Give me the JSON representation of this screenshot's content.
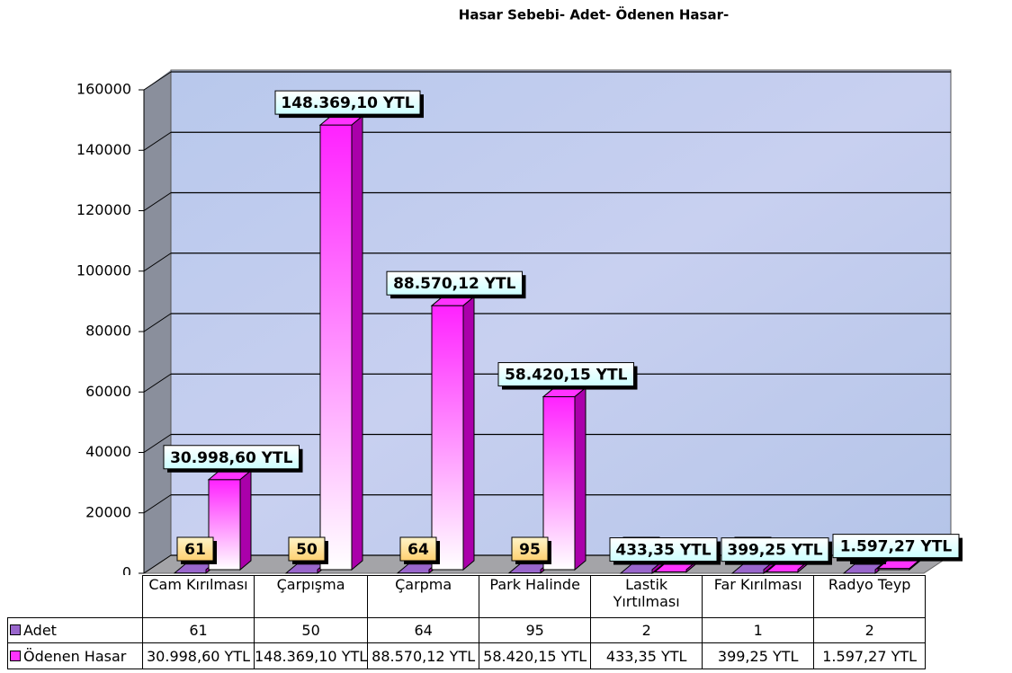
{
  "chart_data": {
    "type": "bar3d",
    "title": "Hasar Sebebi- Adet-  Ödenen Hasar-",
    "categories": [
      "Cam Kırılması",
      "Çarpışma",
      "Çarpma",
      "Park Halinde",
      "Lastik Yırtılması",
      "Far Kırılması",
      "Radyo Teyp"
    ],
    "series": [
      {
        "name": "Adet",
        "color": "#9966cc",
        "values": [
          61,
          50,
          64,
          95,
          2,
          1,
          2
        ]
      },
      {
        "name": "Ödenen Hasar",
        "color": "#ff33ff",
        "values": [
          30998.6,
          148369.1,
          88570.12,
          58420.15,
          433.35,
          399.25,
          1597.27
        ],
        "value_labels": [
          "30.998,60 YTL",
          "148.369,10 YTL",
          "88.570,12 YTL",
          "58.420,15 YTL",
          "433,35 YTL",
          "399,25 YTL",
          "1.597,27 YTL"
        ]
      }
    ],
    "ylim": [
      0,
      160000
    ],
    "yticks": [
      0,
      20000,
      40000,
      60000,
      80000,
      100000,
      120000,
      140000,
      160000
    ],
    "grid": true
  }
}
